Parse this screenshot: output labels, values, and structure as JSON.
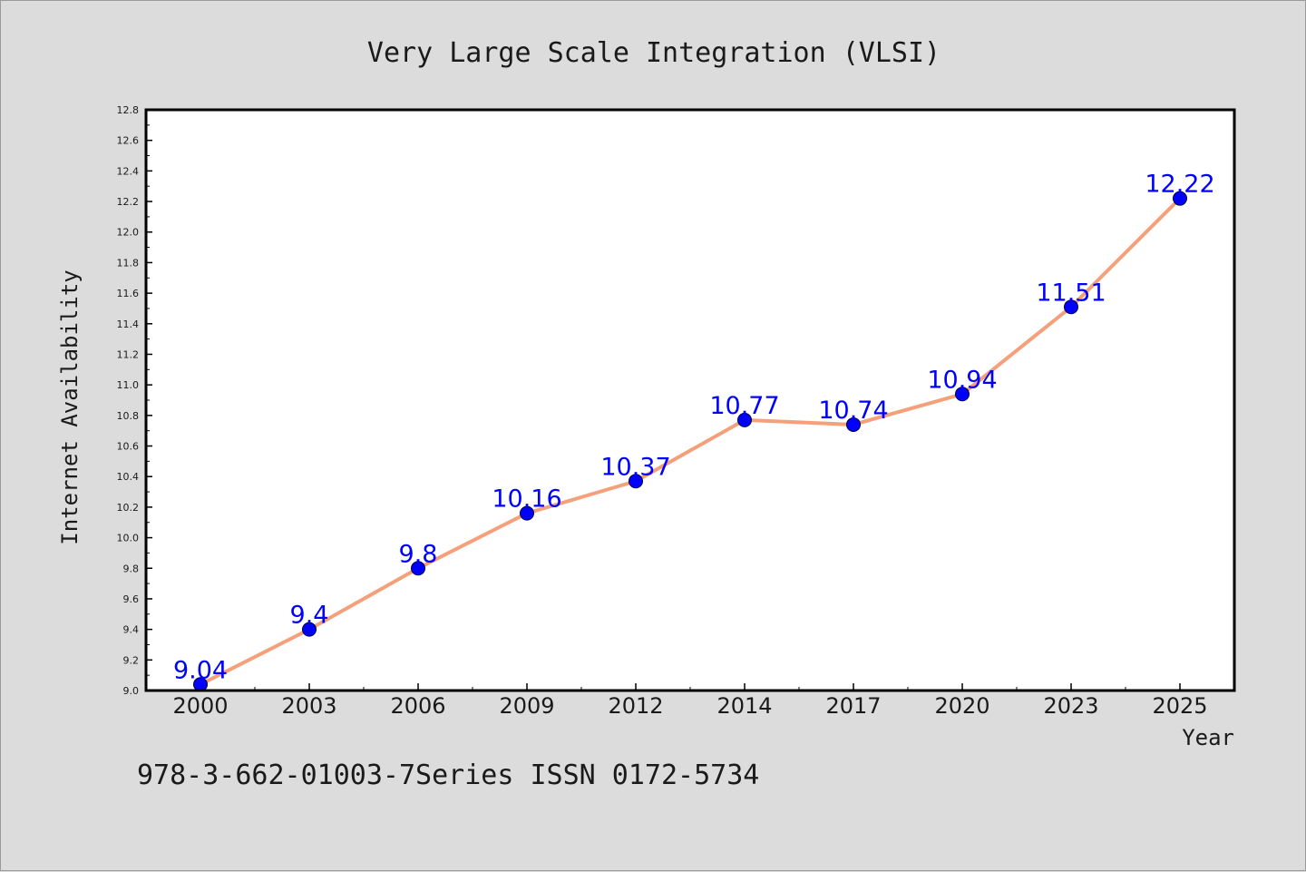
{
  "chart_data": {
    "type": "line",
    "title": "Very Large Scale Integration (VLSI)",
    "xlabel": "Year",
    "ylabel": "Internet Availability",
    "categories": [
      "2000",
      "2003",
      "2006",
      "2009",
      "2012",
      "2014",
      "2017",
      "2020",
      "2023",
      "2025"
    ],
    "series": [
      {
        "values": [
          9.04,
          9.4,
          9.8,
          10.16,
          10.37,
          10.77,
          10.74,
          10.94,
          11.51,
          12.22
        ],
        "data_labels": [
          "9.04",
          "9.4",
          "9.8",
          "10.16",
          "10.37",
          "10.77",
          "10.74",
          "10.94",
          "11.51",
          "12.22"
        ],
        "line_color": "#f4a07a",
        "marker_color": "#0000ff"
      }
    ],
    "ylim": [
      9.0,
      12.8
    ],
    "yticks": [
      "9.0",
      "9.2",
      "9.4",
      "9.6",
      "9.8",
      "10.0",
      "10.2",
      "10.4",
      "10.6",
      "10.8",
      "11.0",
      "11.2",
      "11.4",
      "11.6",
      "11.8",
      "12.0",
      "12.2",
      "12.4",
      "12.6",
      "12.8"
    ],
    "grid": false,
    "legend": false,
    "label_color": "#0000ff"
  },
  "footer": {
    "text": "978-3-662-01003-7Series ISSN 0172-5734"
  }
}
